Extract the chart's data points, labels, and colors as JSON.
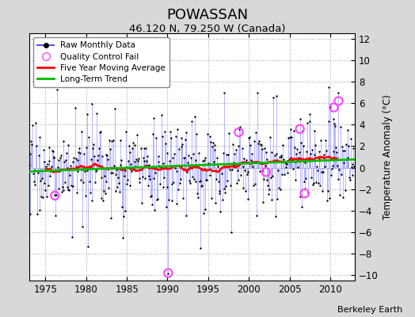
{
  "title": "POWASSAN",
  "subtitle": "46.120 N, 79.250 W (Canada)",
  "ylabel": "Temperature Anomaly (°C)",
  "credit": "Berkeley Earth",
  "xlim": [
    1973.0,
    2013.0
  ],
  "ylim": [
    -10.5,
    12.5
  ],
  "yticks": [
    -10,
    -8,
    -6,
    -4,
    -2,
    0,
    2,
    4,
    6,
    8,
    10,
    12
  ],
  "xticks": [
    1975,
    1980,
    1985,
    1990,
    1995,
    2000,
    2005,
    2010
  ],
  "fig_bg_color": "#d8d8d8",
  "plot_bg_color": "#ffffff",
  "raw_line_color": "#5555ff",
  "raw_dot_color": "#000000",
  "ma_color": "#ff0000",
  "trend_color": "#00bb00",
  "qc_color": "#ff44ff",
  "seed": 17,
  "noise_std": 2.2,
  "trend_slope": 0.028,
  "trend_intercept": -0.35,
  "ma_window": 60,
  "qc_years": [
    1976.17,
    1990.08,
    1998.75,
    2002.08,
    2006.25,
    2006.83,
    2010.42,
    2011.0
  ],
  "qc_vals": [
    -2.6,
    -9.8,
    3.3,
    -0.4,
    3.6,
    -2.4,
    5.6,
    6.2
  ]
}
